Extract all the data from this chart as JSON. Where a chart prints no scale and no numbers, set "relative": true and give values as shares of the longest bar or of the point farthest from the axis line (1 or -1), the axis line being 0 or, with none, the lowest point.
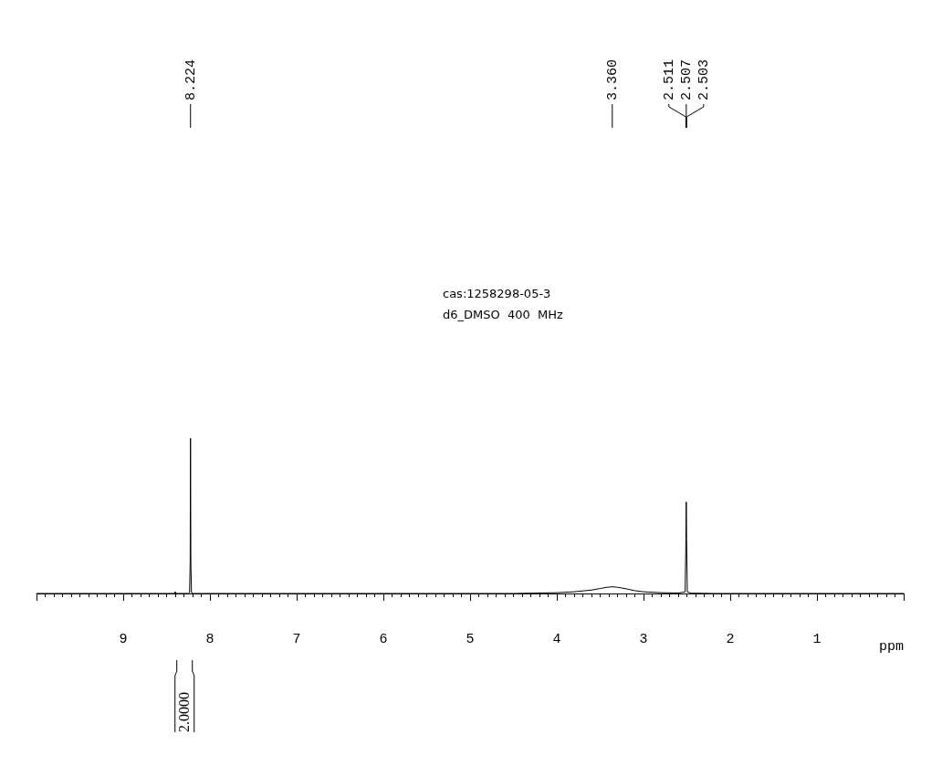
{
  "chart_data": {
    "type": "line",
    "relative": true,
    "title": "cas:1258298-05-3",
    "subtitle": "d6_DMSO  400  MHz",
    "xlabel": "ppm",
    "xlim": [
      10,
      0
    ],
    "xticks": [
      {
        "value": 10,
        "label": null
      },
      9,
      8,
      7,
      6,
      5,
      4,
      3,
      2,
      1,
      {
        "value": 0,
        "label": null
      }
    ],
    "grid": false,
    "marker": "none",
    "line_style": "solid",
    "series": [
      {
        "color": "#000000",
        "x": [
          10,
          8.45,
          8.41,
          8.4,
          8.39,
          8.25,
          8.235,
          8.228,
          8.224,
          8.22,
          8.213,
          8.2,
          4.5,
          4.0,
          3.8,
          3.6,
          3.5,
          3.42,
          3.36,
          3.3,
          3.2,
          3.1,
          3.0,
          2.8,
          2.6,
          2.52,
          2.511,
          2.507,
          2.503,
          2.495,
          2.45,
          2.2,
          0
        ],
        "values": [
          0,
          0,
          0,
          0.012,
          0,
          0,
          0.005,
          0.2,
          1,
          0.2,
          0.005,
          0,
          0,
          0.005,
          0.011,
          0.022,
          0.032,
          0.04,
          0.043,
          0.04,
          0.03,
          0.018,
          0.011,
          0.005,
          0.003,
          0.01,
          0.35,
          0.59,
          0.35,
          0.01,
          0.002,
          0,
          0
        ]
      }
    ],
    "annotations": [
      "8.224",
      "3.360",
      "2.511",
      "2.507",
      "2.503",
      "2.0000"
    ]
  }
}
